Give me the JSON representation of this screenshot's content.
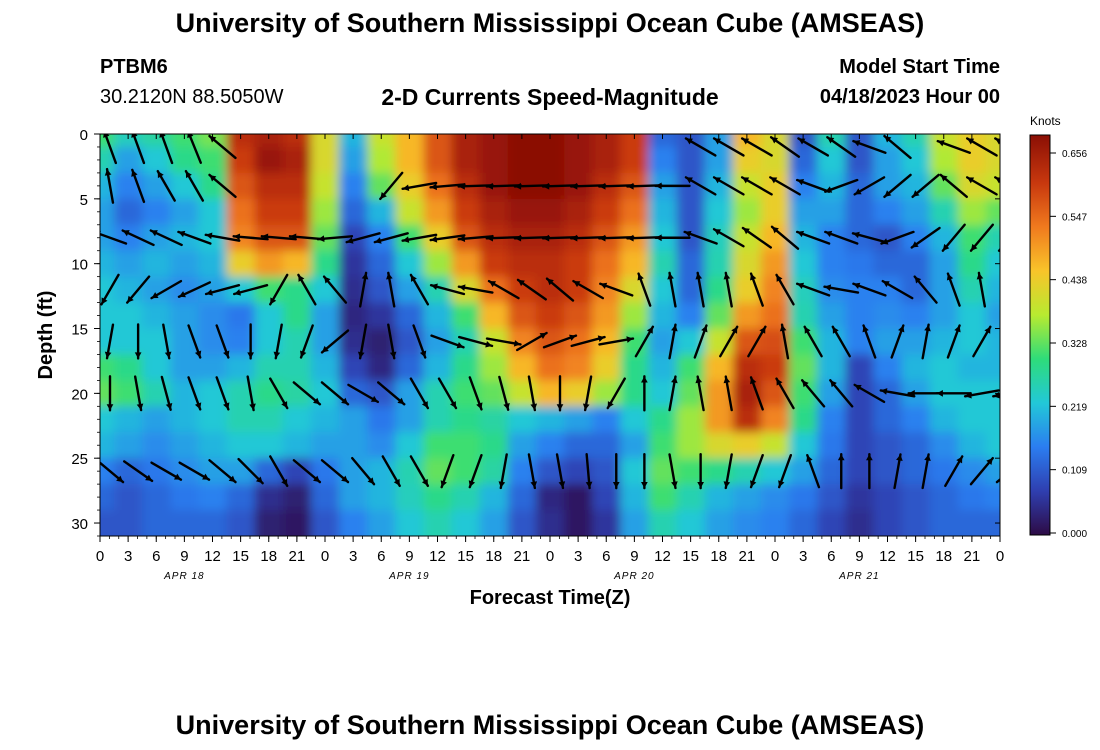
{
  "page": {
    "title": "University of Southern Mississippi Ocean Cube (AMSEAS)",
    "title_repeat": "University of Southern Mississippi Ocean Cube (AMSEAS)",
    "station": "PTBM6",
    "coords": "30.2120N  88.5050W",
    "subtitle": "2-D Currents Speed-Magnitude",
    "start_label": "Model Start Time",
    "start_value": "04/18/2023 Hour 00"
  },
  "chart_data": {
    "type": "heatmap",
    "xlabel": "Forecast Time(Z)",
    "ylabel": "Depth (ft)",
    "x_ticks": [
      "0",
      "3",
      "6",
      "9",
      "12",
      "15",
      "18",
      "21",
      "0",
      "3",
      "6",
      "9",
      "12",
      "15",
      "18",
      "21",
      "0",
      "3",
      "6",
      "9",
      "12",
      "15",
      "18",
      "21",
      "0",
      "3",
      "6",
      "9",
      "12",
      "15",
      "18",
      "21",
      "0"
    ],
    "date_labels": [
      {
        "label": "APR 18",
        "hour": 9
      },
      {
        "label": "APR 19",
        "hour": 33
      },
      {
        "label": "APR 20",
        "hour": 57
      },
      {
        "label": "APR 21",
        "hour": 81
      }
    ],
    "xlim_hours": [
      0,
      96
    ],
    "y_ticks": [
      0,
      5,
      10,
      15,
      20,
      25,
      30
    ],
    "ylim_ft": [
      0,
      31
    ],
    "colorbar": {
      "unit_label": "Knots",
      "ticks": [
        "0.656",
        "0.547",
        "0.438",
        "0.328",
        "0.219",
        "0.109",
        "0.000"
      ],
      "range": [
        0,
        0.656
      ]
    },
    "colormap": [
      "#2d0b45",
      "#2f3fb0",
      "#2b7df0",
      "#22c8d8",
      "#2edc7a",
      "#b8ea30",
      "#f8c42a",
      "#f07a1e",
      "#c8380e",
      "#8b0f05"
    ],
    "time_hours": [
      0,
      3,
      6,
      9,
      12,
      15,
      18,
      21,
      24,
      27,
      30,
      33,
      36,
      39,
      42,
      45,
      48,
      51,
      54,
      57,
      60,
      63,
      66,
      69,
      72,
      75,
      78,
      81,
      84,
      87,
      90,
      93,
      96
    ],
    "depth_levels_ft": [
      0,
      2,
      4,
      6,
      8,
      10,
      12,
      14,
      16,
      18,
      20,
      22,
      24,
      26,
      28,
      30
    ],
    "speed_knots": [
      [
        0.3,
        0.24,
        0.26,
        0.3,
        0.33,
        0.6,
        0.62,
        0.6,
        0.4,
        0.2,
        0.38,
        0.45,
        0.55,
        0.62,
        0.64,
        0.66,
        0.66,
        0.64,
        0.62,
        0.58,
        0.12,
        0.1,
        0.18,
        0.45,
        0.4,
        0.1,
        0.25,
        0.1,
        0.2,
        0.25,
        0.38,
        0.42,
        0.4
      ],
      [
        0.25,
        0.18,
        0.22,
        0.28,
        0.3,
        0.58,
        0.64,
        0.62,
        0.4,
        0.18,
        0.36,
        0.45,
        0.55,
        0.62,
        0.64,
        0.66,
        0.66,
        0.64,
        0.62,
        0.58,
        0.15,
        0.1,
        0.18,
        0.42,
        0.4,
        0.12,
        0.22,
        0.1,
        0.18,
        0.22,
        0.36,
        0.42,
        0.4
      ],
      [
        0.2,
        0.15,
        0.18,
        0.22,
        0.28,
        0.55,
        0.6,
        0.6,
        0.38,
        0.15,
        0.32,
        0.42,
        0.52,
        0.6,
        0.64,
        0.66,
        0.66,
        0.64,
        0.6,
        0.55,
        0.18,
        0.1,
        0.2,
        0.38,
        0.42,
        0.15,
        0.2,
        0.12,
        0.18,
        0.2,
        0.32,
        0.4,
        0.38
      ],
      [
        0.18,
        0.12,
        0.15,
        0.18,
        0.22,
        0.52,
        0.58,
        0.58,
        0.35,
        0.12,
        0.2,
        0.38,
        0.48,
        0.58,
        0.62,
        0.64,
        0.64,
        0.62,
        0.58,
        0.52,
        0.2,
        0.1,
        0.22,
        0.35,
        0.42,
        0.18,
        0.18,
        0.12,
        0.15,
        0.18,
        0.25,
        0.35,
        0.32
      ],
      [
        0.18,
        0.15,
        0.18,
        0.2,
        0.22,
        0.5,
        0.55,
        0.55,
        0.32,
        0.08,
        0.15,
        0.3,
        0.42,
        0.55,
        0.6,
        0.62,
        0.62,
        0.6,
        0.55,
        0.48,
        0.22,
        0.1,
        0.24,
        0.38,
        0.45,
        0.2,
        0.15,
        0.12,
        0.1,
        0.15,
        0.2,
        0.3,
        0.25
      ],
      [
        0.2,
        0.18,
        0.2,
        0.18,
        0.2,
        0.42,
        0.48,
        0.45,
        0.28,
        0.06,
        0.12,
        0.22,
        0.35,
        0.48,
        0.58,
        0.6,
        0.6,
        0.58,
        0.52,
        0.45,
        0.25,
        0.12,
        0.25,
        0.4,
        0.48,
        0.22,
        0.15,
        0.14,
        0.12,
        0.12,
        0.18,
        0.28,
        0.22
      ],
      [
        0.22,
        0.2,
        0.18,
        0.16,
        0.18,
        0.22,
        0.3,
        0.28,
        0.22,
        0.05,
        0.1,
        0.18,
        0.25,
        0.4,
        0.52,
        0.58,
        0.6,
        0.58,
        0.5,
        0.4,
        0.22,
        0.12,
        0.28,
        0.42,
        0.5,
        0.24,
        0.16,
        0.15,
        0.15,
        0.12,
        0.18,
        0.25,
        0.2
      ],
      [
        0.22,
        0.22,
        0.2,
        0.18,
        0.16,
        0.14,
        0.22,
        0.28,
        0.18,
        0.04,
        0.06,
        0.12,
        0.2,
        0.3,
        0.45,
        0.55,
        0.58,
        0.55,
        0.48,
        0.35,
        0.2,
        0.15,
        0.32,
        0.48,
        0.52,
        0.25,
        0.18,
        0.15,
        0.16,
        0.15,
        0.18,
        0.22,
        0.18
      ],
      [
        0.22,
        0.22,
        0.22,
        0.18,
        0.16,
        0.15,
        0.22,
        0.25,
        0.18,
        0.05,
        0.03,
        0.1,
        0.18,
        0.25,
        0.38,
        0.5,
        0.55,
        0.52,
        0.45,
        0.3,
        0.18,
        0.22,
        0.38,
        0.55,
        0.56,
        0.3,
        0.2,
        0.15,
        0.18,
        0.18,
        0.2,
        0.22,
        0.2
      ],
      [
        0.3,
        0.28,
        0.22,
        0.18,
        0.18,
        0.2,
        0.25,
        0.25,
        0.2,
        0.08,
        0.04,
        0.12,
        0.2,
        0.28,
        0.35,
        0.45,
        0.52,
        0.5,
        0.42,
        0.28,
        0.2,
        0.3,
        0.45,
        0.6,
        0.58,
        0.32,
        0.2,
        0.08,
        0.15,
        0.2,
        0.22,
        0.2,
        0.2
      ],
      [
        0.32,
        0.3,
        0.25,
        0.2,
        0.22,
        0.25,
        0.28,
        0.26,
        0.22,
        0.12,
        0.1,
        0.18,
        0.25,
        0.3,
        0.32,
        0.38,
        0.45,
        0.42,
        0.35,
        0.28,
        0.22,
        0.32,
        0.48,
        0.62,
        0.55,
        0.3,
        0.18,
        0.08,
        0.12,
        0.18,
        0.22,
        0.22,
        0.22
      ],
      [
        0.22,
        0.2,
        0.18,
        0.2,
        0.22,
        0.25,
        0.25,
        0.22,
        0.2,
        0.18,
        0.14,
        0.18,
        0.25,
        0.28,
        0.26,
        0.22,
        0.2,
        0.18,
        0.15,
        0.22,
        0.28,
        0.35,
        0.48,
        0.6,
        0.5,
        0.28,
        0.15,
        0.08,
        0.12,
        0.15,
        0.2,
        0.22,
        0.22
      ],
      [
        0.2,
        0.18,
        0.16,
        0.18,
        0.2,
        0.22,
        0.22,
        0.2,
        0.18,
        0.18,
        0.16,
        0.22,
        0.3,
        0.3,
        0.28,
        0.18,
        0.15,
        0.12,
        0.12,
        0.18,
        0.3,
        0.35,
        0.4,
        0.42,
        0.38,
        0.22,
        0.14,
        0.08,
        0.1,
        0.12,
        0.16,
        0.2,
        0.22
      ],
      [
        0.15,
        0.12,
        0.14,
        0.16,
        0.18,
        0.18,
        0.12,
        0.08,
        0.14,
        0.18,
        0.2,
        0.25,
        0.32,
        0.3,
        0.26,
        0.15,
        0.1,
        0.08,
        0.1,
        0.22,
        0.32,
        0.3,
        0.28,
        0.25,
        0.22,
        0.18,
        0.12,
        0.08,
        0.1,
        0.12,
        0.14,
        0.16,
        0.18
      ],
      [
        0.12,
        0.1,
        0.12,
        0.14,
        0.15,
        0.12,
        0.05,
        0.03,
        0.12,
        0.18,
        0.2,
        0.24,
        0.28,
        0.25,
        0.2,
        0.12,
        0.04,
        0.02,
        0.08,
        0.2,
        0.3,
        0.25,
        0.2,
        0.18,
        0.16,
        0.14,
        0.1,
        0.06,
        0.08,
        0.1,
        0.12,
        0.14,
        0.15
      ],
      [
        0.1,
        0.1,
        0.12,
        0.12,
        0.12,
        0.1,
        0.03,
        0.02,
        0.1,
        0.15,
        0.18,
        0.22,
        0.25,
        0.22,
        0.18,
        0.1,
        0.05,
        0.02,
        0.06,
        0.18,
        0.25,
        0.22,
        0.18,
        0.16,
        0.15,
        0.12,
        0.08,
        0.05,
        0.08,
        0.1,
        0.12,
        0.12,
        0.12
      ]
    ],
    "vector_angle_deg": [
      [
        250,
        250,
        250,
        248,
        220,
        null,
        null,
        null,
        null,
        null,
        null,
        null,
        null,
        null,
        null,
        null,
        null,
        null,
        null,
        null,
        null,
        210,
        210,
        210,
        215,
        210,
        215,
        200,
        220,
        null,
        200,
        210,
        210
      ],
      [
        260,
        250,
        240,
        240,
        220,
        null,
        null,
        null,
        null,
        null,
        130,
        170,
        175,
        178,
        178,
        178,
        178,
        178,
        178,
        178,
        180,
        210,
        210,
        210,
        210,
        200,
        160,
        150,
        140,
        140,
        220,
        210,
        210
      ],
      [
        200,
        205,
        205,
        200,
        190,
        185,
        185,
        185,
        175,
        165,
        165,
        170,
        172,
        175,
        178,
        178,
        178,
        178,
        178,
        178,
        180,
        200,
        210,
        215,
        220,
        200,
        200,
        195,
        160,
        145,
        130,
        130,
        130
      ],
      [
        120,
        130,
        150,
        155,
        165,
        165,
        120,
        240,
        230,
        280,
        260,
        240,
        195,
        190,
        210,
        215,
        220,
        210,
        200,
        250,
        260,
        260,
        260,
        250,
        240,
        200,
        190,
        200,
        210,
        230,
        250,
        260,
        260
      ],
      [
        100,
        90,
        80,
        70,
        70,
        90,
        100,
        110,
        140,
        100,
        80,
        70,
        20,
        15,
        10,
        330,
        340,
        345,
        350,
        300,
        280,
        290,
        300,
        300,
        260,
        240,
        240,
        250,
        290,
        280,
        290,
        300,
        300
      ],
      [
        90,
        80,
        75,
        70,
        70,
        80,
        60,
        40,
        40,
        30,
        40,
        60,
        60,
        70,
        75,
        80,
        90,
        100,
        120,
        270,
        280,
        260,
        260,
        250,
        240,
        230,
        230,
        210,
        190,
        180,
        180,
        170,
        170
      ],
      [
        40,
        35,
        30,
        30,
        40,
        45,
        60,
        40,
        40,
        50,
        60,
        60,
        110,
        110,
        100,
        80,
        80,
        85,
        90,
        90,
        80,
        90,
        100,
        110,
        110,
        250,
        270,
        270,
        280,
        280,
        300,
        310,
        320
      ]
    ],
    "vector_depths_ft": [
      1,
      4,
      8,
      12,
      16,
      20,
      26
    ]
  }
}
